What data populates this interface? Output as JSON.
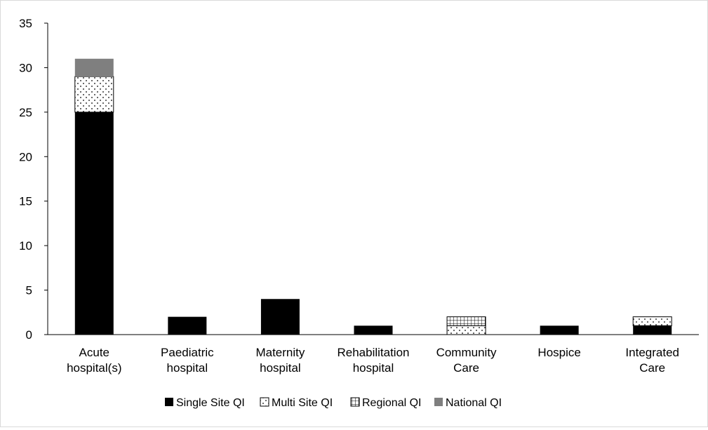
{
  "chart_data": {
    "type": "bar",
    "stacked": true,
    "title": "",
    "xlabel": "",
    "ylabel": "",
    "ylim": [
      0,
      35
    ],
    "yticks": [
      0,
      5,
      10,
      15,
      20,
      25,
      30,
      35
    ],
    "grid": false,
    "legend_position": "bottom",
    "categories": [
      [
        "Acute",
        "hospital(s)"
      ],
      [
        "Paediatric",
        "hospital"
      ],
      [
        "Maternity",
        "hospital"
      ],
      [
        "Rehabilitation",
        "hospital"
      ],
      [
        "Community",
        "Care"
      ],
      [
        "Hospice"
      ],
      [
        "Integrated",
        "Care"
      ]
    ],
    "series": [
      {
        "name": "Single Site QI",
        "pattern": "solid-black",
        "values": [
          25,
          2,
          4,
          1,
          0,
          1,
          1
        ]
      },
      {
        "name": "Multi Site QI",
        "pattern": "dotted",
        "values": [
          4,
          0,
          0,
          0,
          1,
          0,
          1
        ]
      },
      {
        "name": "Regional QI",
        "pattern": "grid",
        "values": [
          0,
          0,
          0,
          0,
          1,
          0,
          0
        ]
      },
      {
        "name": "National QI",
        "pattern": "solid-grey",
        "values": [
          2,
          0,
          0,
          0,
          0,
          0,
          0
        ]
      }
    ],
    "colors": {
      "single": "#000000",
      "national": "#7f7f7f",
      "axis": "#000000"
    }
  }
}
